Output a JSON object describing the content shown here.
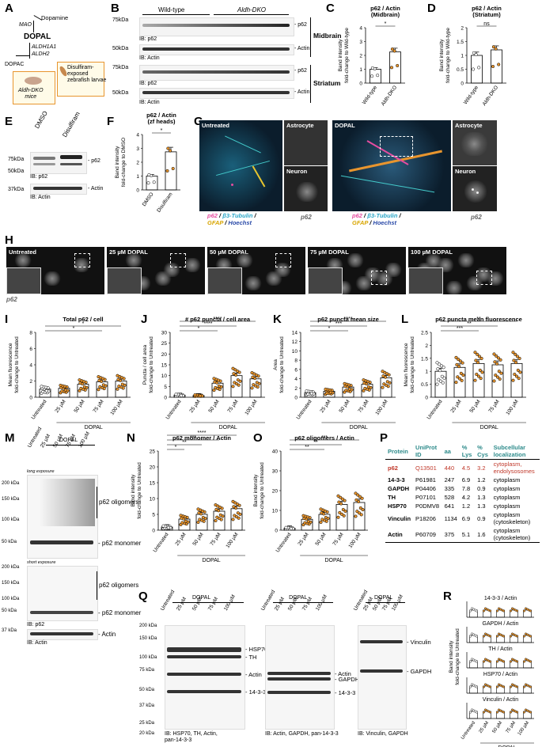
{
  "panels": {
    "A": "A",
    "B": "B",
    "C": "C",
    "D": "D",
    "E": "E",
    "F": "F",
    "G": "G",
    "H": "H",
    "I": "I",
    "J": "J",
    "K": "K",
    "L": "L",
    "M": "M",
    "N": "N",
    "O": "O",
    "P": "P",
    "Q": "Q",
    "R": "R"
  },
  "a": {
    "dopamine": "Dopamine",
    "mao": "MAO",
    "dopal": "DOPAL",
    "aldh": "ALDH1A1\nALDH2",
    "dopac": "DOPAC",
    "mice": "Aldh-DKO\nmice",
    "zebrafish": "Disulfiram-\nexposed\nzebrafish larvae"
  },
  "b": {
    "wt": "Wild-type",
    "dko": "Aldh-DKO",
    "midbrain": "Midbrain",
    "striatum": "Striatum",
    "kda75": "75kDa",
    "kda50": "50kDa",
    "p62": "- p62",
    "actin": "- Actin",
    "ibp62": "IB: p62",
    "ibactin": "IB: Actin"
  },
  "e": {
    "dmso": "DMSO",
    "disulfiram": "Disulfiram",
    "kda75": "75kDa",
    "kda50": "50kDa",
    "kda37": "37kDa",
    "p62": "- p62",
    "actin": "- Actin",
    "ibp62": "IB: p62",
    "ibactin": "IB: Actin"
  },
  "g": {
    "untreated": "Untreated",
    "dopal": "DOPAL",
    "astrocyte": "Astrocyte",
    "neuron": "Neuron",
    "p62": "p62",
    "legend_p62": "p62",
    "legend_tub": "β3-Tubulin",
    "legend_gfap": "GFAP",
    "legend_hoechst": "Hoechst",
    "sep": " / ",
    "a": "A",
    "n": "N"
  },
  "h": {
    "labels": [
      "Untreated",
      "25 µM DOPAL",
      "50 µM DOPAL",
      "75 µM DOPAL",
      "100 µM DOPAL"
    ],
    "p62": "p62"
  },
  "groups5": [
    "Untreated",
    "25 µM",
    "50 µM",
    "75 µM",
    "100 µM"
  ],
  "dopal": "DOPAL",
  "chart_data": [
    {
      "id": "C",
      "type": "bar",
      "title": "p62 / Actin\n(Midbrain)",
      "ylabel": "Band intensity\nfold-change to Wild-type",
      "categories": [
        "Wild-type",
        "Aldh-DKO"
      ],
      "values": [
        1.0,
        2.25
      ],
      "ylim": [
        0,
        4
      ],
      "yticks": [
        0,
        1,
        2,
        3,
        4
      ],
      "sig": [
        "*"
      ]
    },
    {
      "id": "D",
      "type": "bar",
      "title": "p62 / Actin\n(Striatum)",
      "ylabel": "Band intensity\nfold-change to Wild-type",
      "categories": [
        "Wild-type",
        "Aldh-DKO"
      ],
      "values": [
        1.0,
        1.2
      ],
      "ylim": [
        0,
        2.0
      ],
      "yticks": [
        0.0,
        0.5,
        1.0,
        1.5,
        2.0
      ],
      "sig": [
        "ns"
      ]
    },
    {
      "id": "F",
      "type": "bar",
      "title": "p62 / Actin\n(zf heads)",
      "ylabel": "Band intensity\nfold-change to DMSO",
      "categories": [
        "DMSO",
        "Disulfiram"
      ],
      "values": [
        1.0,
        2.75
      ],
      "ylim": [
        0,
        4
      ],
      "yticks": [
        0,
        1,
        2,
        3,
        4
      ],
      "sig": [
        "*"
      ]
    },
    {
      "id": "I",
      "type": "bar",
      "title": "Total p62 / cell",
      "ylabel": "Mean fluorescence\nfold-change to Untreated",
      "categories": [
        "Untreated",
        "25 µM",
        "50 µM",
        "75 µM",
        "100 µM"
      ],
      "values": [
        1.0,
        1.1,
        1.6,
        1.9,
        2.0
      ],
      "ylim": [
        0,
        8
      ],
      "yticks": [
        0,
        2,
        4,
        6,
        8
      ],
      "sig": [
        "*",
        "*"
      ]
    },
    {
      "id": "J",
      "type": "bar",
      "title": "# p62 puncta / cell area",
      "ylabel": "Puncta / cell area\nfold-change to Untreated",
      "categories": [
        "Untreated",
        "25 µM",
        "50 µM",
        "75 µM",
        "100 µM"
      ],
      "values": [
        1.0,
        0.8,
        6.5,
        10,
        8.5
      ],
      "ylim": [
        0,
        30
      ],
      "yticks": [
        0,
        5,
        10,
        15,
        20,
        25,
        30
      ],
      "sig": [
        "*",
        "****",
        "****"
      ]
    },
    {
      "id": "K",
      "type": "bar",
      "title": "p62 puncta mean size",
      "ylabel": "Area\nfold-change to Untreated",
      "categories": [
        "Untreated",
        "25 µM",
        "50 µM",
        "75 µM",
        "100 µM"
      ],
      "values": [
        1.0,
        1.3,
        2.2,
        2.8,
        4.2
      ],
      "ylim": [
        0,
        14
      ],
      "yticks": [
        0,
        2,
        4,
        6,
        8,
        10,
        12,
        14
      ],
      "sig": [
        "*",
        "***",
        "****"
      ]
    },
    {
      "id": "L",
      "type": "bar",
      "title": "p62 puncta mean fluorescence",
      "ylabel": "Mean fluorescence\nfold-change to Untreated",
      "categories": [
        "Untreated",
        "25 µM",
        "50 µM",
        "75 µM",
        "100 µM"
      ],
      "values": [
        1.0,
        1.15,
        1.3,
        1.25,
        1.3
      ],
      "ylim": [
        0,
        2.5
      ],
      "yticks": [
        0.0,
        0.5,
        1.0,
        1.5,
        2.0,
        2.5
      ],
      "sig": [
        "***",
        "**",
        "**"
      ]
    },
    {
      "id": "N",
      "type": "bar",
      "title": "p62 monomer / Actin",
      "ylabel": "Band intensity\nfold-change to Untreated",
      "categories": [
        "Untreated",
        "25 µM",
        "50 µM",
        "75 µM",
        "100 µM"
      ],
      "values": [
        1.0,
        3.5,
        5.0,
        6.0,
        6.8
      ],
      "ylim": [
        0,
        25
      ],
      "yticks": [
        0,
        5,
        10,
        15,
        20,
        25
      ],
      "sig": [
        "*",
        "**",
        "***",
        "****"
      ]
    },
    {
      "id": "O",
      "type": "bar",
      "title": "p62 oligomers / Actin",
      "ylabel": "Band intensity\nfold-change to Untreated",
      "categories": [
        "Untreated",
        "25 µM",
        "50 µM",
        "75 µM",
        "100 µM"
      ],
      "values": [
        1.0,
        5.5,
        8.0,
        13,
        14
      ],
      "ylim": [
        0,
        40
      ],
      "yticks": [
        0,
        10,
        20,
        30,
        40
      ],
      "sig": [
        "**",
        "**",
        "***"
      ]
    }
  ],
  "m": {
    "dopal": "DOPAL",
    "long": "long exposure",
    "short": "short exposure",
    "oligo": "p62 oligomers",
    "mono": "- p62 monomer",
    "actin": "- Actin",
    "ibp62": "IB: p62",
    "ibactin": "IB: Actin",
    "kda": [
      "200 kDa",
      "150 kDa",
      "100 kDa",
      "50 kDa",
      "200 kDa",
      "150 kDa",
      "100 kDa",
      "50 kDa",
      "37 kDa"
    ]
  },
  "p": {
    "headers": [
      "Protein",
      "UniProt ID",
      "aa",
      "% Lys",
      "% Cys",
      "Subcellular localization"
    ],
    "rows": [
      [
        "p62",
        "Q13501",
        "440",
        "4.5",
        "3.2",
        "cytoplasm, endolysosomes"
      ],
      [
        "14-3-3",
        "P61981",
        "247",
        "6.9",
        "1.2",
        "cytoplasm"
      ],
      [
        "GAPDH",
        "P04406",
        "335",
        "7.8",
        "0.9",
        "cytoplasm"
      ],
      [
        "TH",
        "P07101",
        "528",
        "4.2",
        "1.3",
        "cytoplasm"
      ],
      [
        "HSP70",
        "P0DMV8",
        "641",
        "1.2",
        "1.3",
        "cytoplasm"
      ],
      [
        "Vinculin",
        "P18206",
        "1134",
        "6.9",
        "0.9",
        "cytoplasm (cytoskeleton)"
      ],
      [
        "Actin",
        "P60709",
        "375",
        "5.1",
        "1.6",
        "cytoplasm (cytoskeleton)"
      ]
    ]
  },
  "q": {
    "dopal": "DOPAL",
    "kda": [
      "200 kDa",
      "150 kDa",
      "100 kDa",
      "75 kDa",
      "50 kDa",
      "37 kDa",
      "25 kDa",
      "20 kDa"
    ],
    "b1": [
      "- HSP70",
      "- TH",
      "- Actin",
      "- 14-3-3"
    ],
    "b2": [
      "- Actin",
      "- GAPDH",
      "- 14-3-3"
    ],
    "b3": [
      "- Vinculin",
      "- GAPDH"
    ],
    "ib1": "IB: HSP70, TH, Actin,\npan-14-3-3",
    "ib2": "IB: Actin, GAPDH, pan-14-3-3",
    "ib3": "IB: Vinculin, GAPDH"
  },
  "r": {
    "titles": [
      "14-3-3 / Actin",
      "GAPDH / Actin",
      "TH / Actin",
      "HSP70 / Actin",
      "Vinculin / Actin"
    ],
    "ylabel": "Band intensity\nfold-change to Untreated"
  },
  "colors": {
    "orange": "#e8952e",
    "white": "#ffffff",
    "red": "#c0392b",
    "teal": "#2e8b8b"
  }
}
